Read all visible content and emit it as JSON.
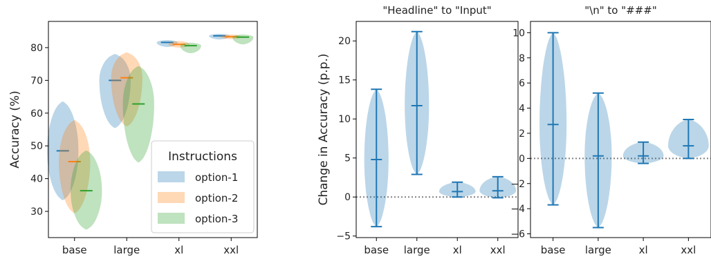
{
  "colors": {
    "option-1": "#1f77b4",
    "option-2": "#ff7f0e",
    "option-3": "#2ca02c"
  },
  "chart_data": [
    {
      "type": "violin",
      "title": "",
      "ylabel": "Accuracy (%)",
      "categories": [
        "base",
        "large",
        "xl",
        "xxl"
      ],
      "ylim": [
        22,
        88
      ],
      "yticks": [
        30,
        40,
        50,
        60,
        70,
        80
      ],
      "legend": {
        "title": "Instructions",
        "placement": "bottom-right"
      },
      "series": [
        {
          "name": "option-1",
          "color": "#1f77b4",
          "values": [
            {
              "category": "base",
              "min": 33.5,
              "max": 63.5,
              "median": 48.5
            },
            {
              "category": "large",
              "min": 55.5,
              "max": 78.0,
              "median": 70.0
            },
            {
              "category": "xl",
              "min": 80.2,
              "max": 82.3,
              "median": 81.6
            },
            {
              "category": "xxl",
              "min": 82.5,
              "max": 84.2,
              "median": 83.6
            }
          ]
        },
        {
          "name": "option-2",
          "color": "#ff7f0e",
          "values": [
            {
              "category": "base",
              "min": 29.5,
              "max": 57.8,
              "median": 45.2
            },
            {
              "category": "large",
              "min": 56.0,
              "max": 78.5,
              "median": 70.8
            },
            {
              "category": "xl",
              "min": 80.0,
              "max": 82.0,
              "median": 81.0
            },
            {
              "category": "xxl",
              "min": 82.6,
              "max": 84.0,
              "median": 83.3
            }
          ]
        },
        {
          "name": "option-3",
          "color": "#2ca02c",
          "values": [
            {
              "category": "base",
              "min": 24.5,
              "max": 48.5,
              "median": 36.3
            },
            {
              "category": "large",
              "min": 45.0,
              "max": 74.3,
              "median": 62.8
            },
            {
              "category": "xl",
              "min": 78.3,
              "max": 81.5,
              "median": 80.6
            },
            {
              "category": "xxl",
              "min": 81.0,
              "max": 84.0,
              "median": 83.2
            }
          ]
        }
      ]
    },
    {
      "type": "violin",
      "title": "\"Headline\" to \"Input\"",
      "ylabel": "Change in Accuracy (p.p.)",
      "categories": [
        "base",
        "large",
        "xl",
        "xxl"
      ],
      "ylim": [
        -5.2,
        22.5
      ],
      "yticks": [
        -5,
        0,
        5,
        10,
        15,
        20
      ],
      "reference_line": 0,
      "series": [
        {
          "color": "#1f77b4",
          "values": [
            {
              "category": "base",
              "min": -3.8,
              "max": 13.8,
              "median": 4.8
            },
            {
              "category": "large",
              "min": 2.9,
              "max": 21.2,
              "median": 11.7
            },
            {
              "category": "xl",
              "min": 0.0,
              "max": 1.9,
              "median": 0.7
            },
            {
              "category": "xxl",
              "min": -0.1,
              "max": 2.6,
              "median": 0.8
            }
          ]
        }
      ]
    },
    {
      "type": "violin",
      "title": "\"\\n\" to \"###\"",
      "ylabel": "",
      "categories": [
        "base",
        "large",
        "xl",
        "xxl"
      ],
      "ylim": [
        -6.3,
        10.9
      ],
      "yticks": [
        -6,
        -4,
        -2,
        0,
        2,
        4,
        6,
        8,
        10
      ],
      "reference_line": 0,
      "series": [
        {
          "color": "#1f77b4",
          "values": [
            {
              "category": "base",
              "min": -3.7,
              "max": 10.0,
              "median": 2.7
            },
            {
              "category": "large",
              "min": -5.5,
              "max": 5.2,
              "median": 0.2
            },
            {
              "category": "xl",
              "min": -0.4,
              "max": 1.3,
              "median": 0.2
            },
            {
              "category": "xxl",
              "min": 0.0,
              "max": 3.1,
              "median": 1.0
            }
          ]
        }
      ]
    }
  ]
}
